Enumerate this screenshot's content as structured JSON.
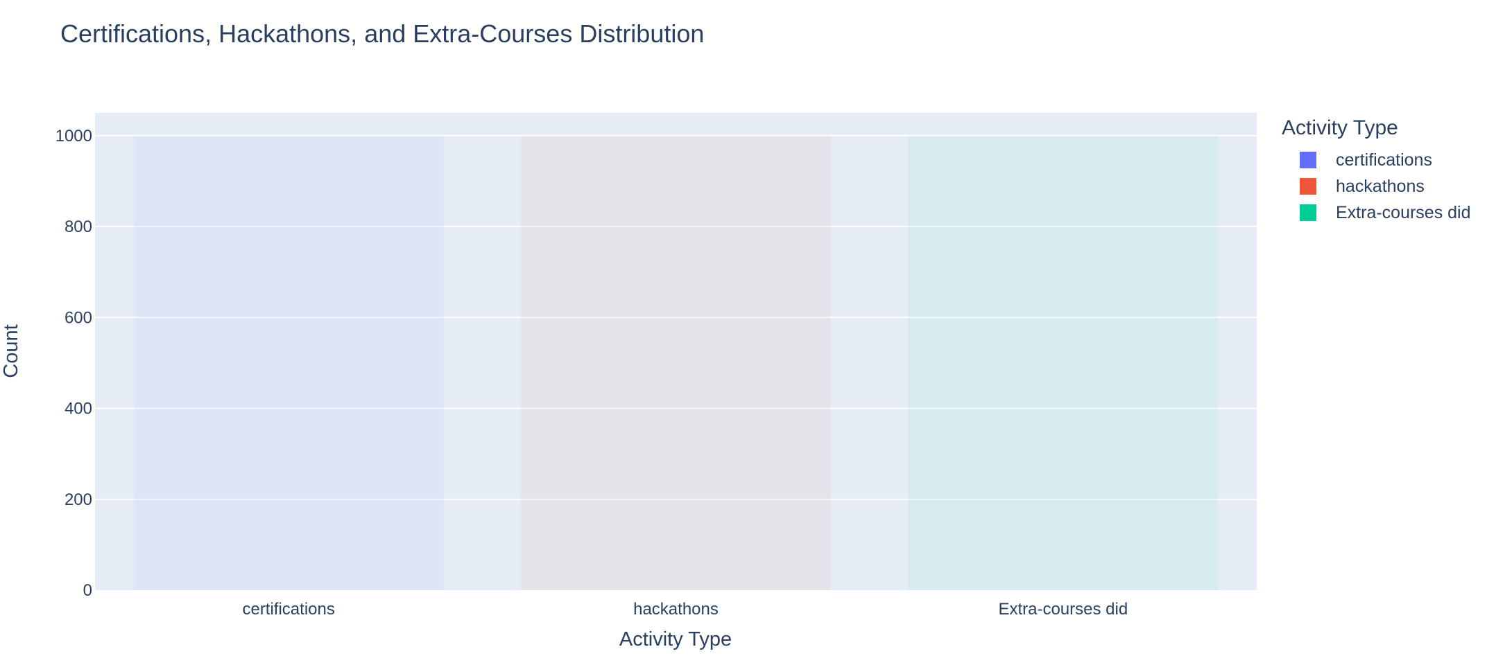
{
  "chart_data": {
    "type": "bar",
    "title": "Certifications, Hackathons, and Extra-Courses Distribution",
    "xlabel": "Activity Type",
    "ylabel": "Count",
    "categories": [
      "certifications",
      "hackathons",
      "Extra-courses did"
    ],
    "series": [
      {
        "name": "certifications",
        "color": "#636efa",
        "values": [
          1000,
          0,
          0
        ]
      },
      {
        "name": "hackathons",
        "color": "#ef553b",
        "values": [
          0,
          1000,
          0
        ]
      },
      {
        "name": "Extra-courses did",
        "color": "#00cc96",
        "values": [
          0,
          0,
          1000
        ]
      }
    ],
    "ylim": [
      0,
      1050
    ],
    "yticks": [
      0,
      200,
      400,
      600,
      800,
      1000
    ],
    "grid": true,
    "legend": {
      "title": "Activity Type",
      "placement": "top-right"
    }
  }
}
